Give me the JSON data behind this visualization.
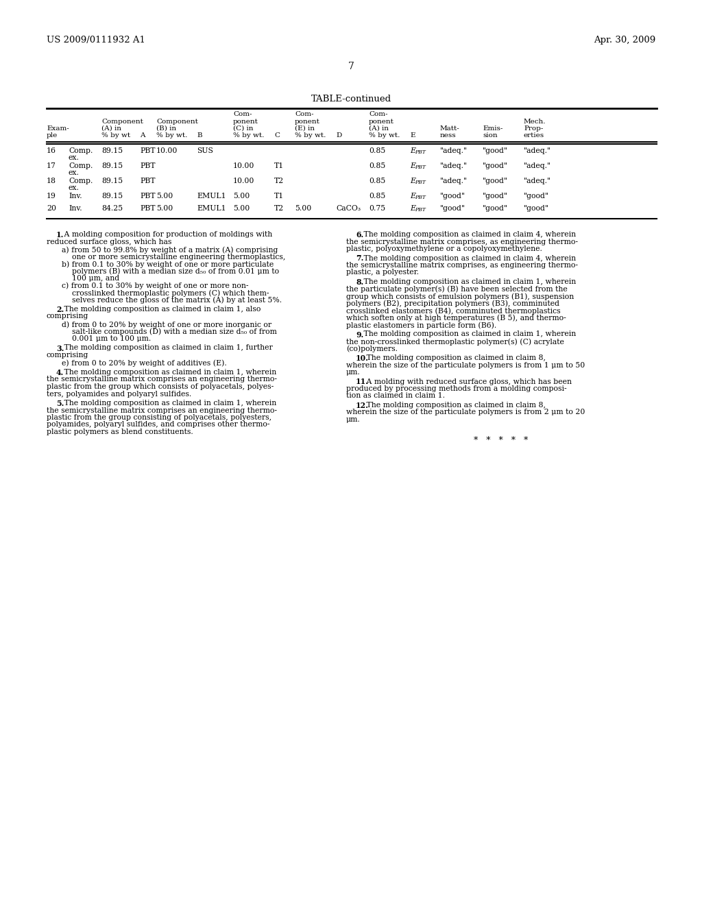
{
  "bg_color": "#ffffff",
  "header_left": "US 2009/0111932 A1",
  "header_right": "Apr. 30, 2009",
  "page_number": "7",
  "table_title": "TABLE-continued"
}
